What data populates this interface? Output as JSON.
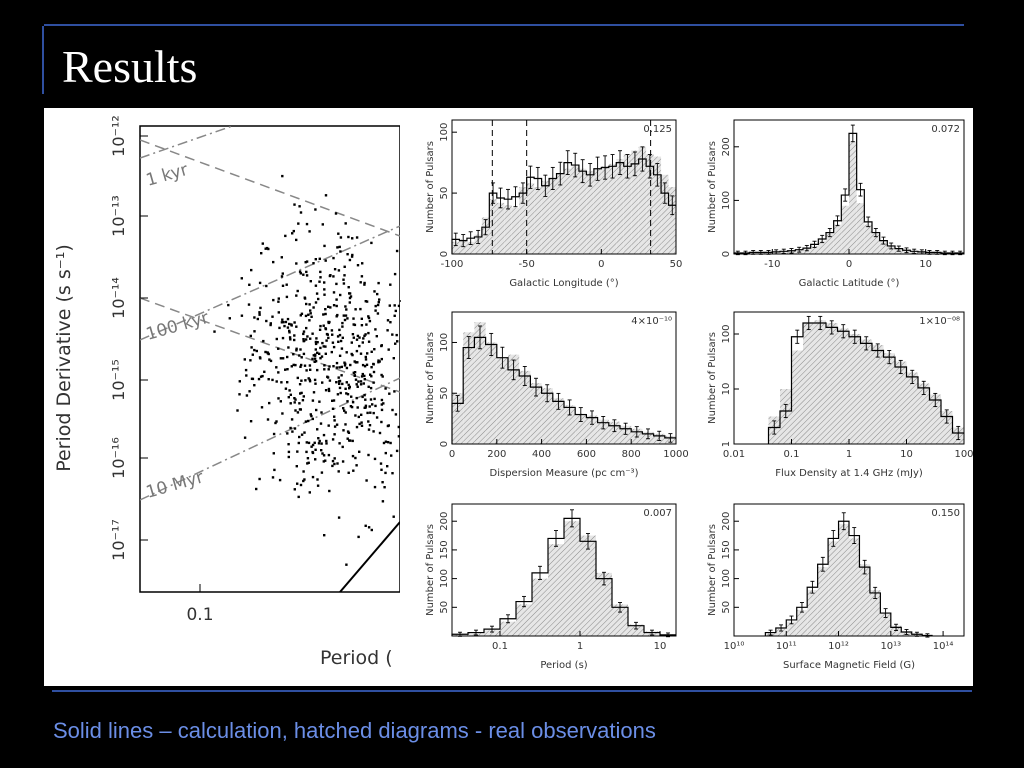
{
  "slide": {
    "title": "Results",
    "caption": "Solid lines – calculation, hatched diagrams - real observations"
  },
  "colors": {
    "background": "#000000",
    "accent_line": "#2f4fa0",
    "caption": "#6b8ee6",
    "title": "#ffffff"
  },
  "chart_data": [
    {
      "type": "scatter",
      "xlabel": "Period (",
      "ylabel": "Period Derivative (s s⁻¹)",
      "x_scale": "log",
      "y_scale": "log",
      "x_ticks": [
        "0.1"
      ],
      "y_ticks": [
        "10⁻¹²",
        "10⁻¹³",
        "10⁻¹⁴",
        "10⁻¹⁵",
        "10⁻¹⁶",
        "10⁻¹⁷"
      ],
      "annotations": [
        "1 kyr",
        "100 kyr",
        "10 Myr"
      ]
    },
    {
      "type": "bar",
      "xlabel": "Galactic Longitude (°)",
      "ylabel": "Number of Pulsars",
      "corner_label": "0.125",
      "x_ticks": [
        "-100",
        "-50",
        "0",
        "50"
      ],
      "y_ticks": [
        "0",
        "50",
        "100"
      ],
      "xlim": [
        -100,
        50
      ],
      "ylim": [
        0,
        110
      ],
      "bins_x": [
        -100,
        -95,
        -90,
        -85,
        -80,
        -75,
        -70,
        -65,
        -60,
        -55,
        -50,
        -45,
        -40,
        -35,
        -30,
        -25,
        -20,
        -15,
        -10,
        -5,
        0,
        5,
        10,
        15,
        20,
        25,
        30,
        35,
        40,
        45,
        50
      ],
      "observed": [
        10,
        12,
        10,
        16,
        30,
        45,
        42,
        40,
        38,
        55,
        58,
        55,
        60,
        62,
        66,
        70,
        72,
        70,
        68,
        70,
        72,
        74,
        78,
        82,
        85,
        88,
        82,
        80,
        65,
        55
      ],
      "model": [
        12,
        11,
        13,
        14,
        22,
        50,
        46,
        45,
        47,
        50,
        63,
        62,
        56,
        62,
        66,
        75,
        73,
        68,
        65,
        70,
        71,
        72,
        75,
        72,
        74,
        78,
        72,
        65,
        50,
        40
      ]
    },
    {
      "type": "bar",
      "xlabel": "Galactic Latitude (°)",
      "ylabel": "Number of Pulsars",
      "corner_label": "0.072",
      "x_ticks": [
        "-10",
        "0",
        "10"
      ],
      "y_ticks": [
        "0",
        "100",
        "200"
      ],
      "xlim": [
        -15,
        15
      ],
      "ylim": [
        0,
        250
      ],
      "bins_x": [
        -15,
        -14,
        -13,
        -12,
        -11,
        -10,
        -9,
        -8,
        -7,
        -6,
        -5,
        -4,
        -3,
        -2,
        -1,
        0,
        1,
        2,
        3,
        4,
        5,
        6,
        7,
        8,
        9,
        10,
        11,
        12,
        13,
        14,
        15
      ],
      "observed": [
        3,
        3,
        3,
        3,
        4,
        4,
        5,
        6,
        8,
        10,
        15,
        25,
        40,
        55,
        90,
        210,
        95,
        55,
        40,
        25,
        15,
        10,
        8,
        6,
        5,
        4,
        4,
        3,
        3,
        3
      ],
      "model": [
        2,
        2,
        3,
        3,
        3,
        4,
        5,
        6,
        8,
        11,
        18,
        28,
        40,
        62,
        110,
        225,
        120,
        60,
        40,
        25,
        15,
        10,
        7,
        5,
        4,
        3,
        3,
        2,
        2,
        2
      ]
    },
    {
      "type": "bar",
      "xlabel": "Dispersion Measure (pc cm⁻³)",
      "ylabel": "Number of Pulsars",
      "corner_label": "4×10⁻¹⁰",
      "x_ticks": [
        "0",
        "200",
        "400",
        "600",
        "800",
        "1000"
      ],
      "y_ticks": [
        "0",
        "50",
        "100"
      ],
      "xlim": [
        0,
        1000
      ],
      "ylim": [
        0,
        130
      ],
      "bins_x": [
        0,
        50,
        100,
        150,
        200,
        250,
        300,
        350,
        400,
        450,
        500,
        550,
        600,
        650,
        700,
        750,
        800,
        850,
        900,
        950,
        1000
      ],
      "observed": [
        50,
        110,
        120,
        100,
        85,
        88,
        72,
        60,
        55,
        45,
        38,
        30,
        28,
        24,
        22,
        18,
        15,
        12,
        10,
        8
      ],
      "model": [
        40,
        95,
        105,
        98,
        85,
        73,
        67,
        56,
        50,
        42,
        36,
        29,
        26,
        21,
        18,
        15,
        12,
        10,
        8,
        6
      ]
    },
    {
      "type": "bar",
      "xlabel": "Flux Density at 1.4 GHz (mJy)",
      "ylabel": "Number of Pulsars",
      "corner_label": "1×10⁻⁰⁸",
      "x_ticks": [
        "0.01",
        "0.1",
        "1",
        "10",
        "100"
      ],
      "y_ticks": [
        "1",
        "10",
        "100"
      ],
      "x_scale": "log",
      "y_scale": "log",
      "xlim_log10": [
        -2,
        2
      ],
      "ylim_log10": [
        0,
        2.4
      ],
      "bins_log10": [
        -1.4,
        -1.2,
        -1.0,
        -0.8,
        -0.6,
        -0.4,
        -0.2,
        0,
        0.2,
        0.4,
        0.6,
        0.8,
        1.0,
        1.2,
        1.4,
        1.6,
        1.8,
        2.0
      ],
      "observed_log10": [
        0.5,
        1.0,
        1.7,
        2.2,
        2.25,
        2.2,
        2.1,
        2.0,
        1.9,
        1.8,
        1.65,
        1.5,
        1.3,
        1.1,
        0.9,
        0.6,
        0.3
      ],
      "model_log10": [
        0.3,
        0.6,
        1.95,
        2.2,
        2.2,
        2.12,
        2.05,
        1.95,
        1.83,
        1.7,
        1.58,
        1.4,
        1.22,
        1.02,
        0.8,
        0.5,
        0.2
      ]
    },
    {
      "type": "bar",
      "xlabel": "Period (s)",
      "ylabel": "Number of Pulsars",
      "corner_label": "0.007",
      "x_ticks": [
        "0.1",
        "1",
        "10"
      ],
      "y_ticks": [
        "50",
        "100",
        "150",
        "200"
      ],
      "x_scale": "log",
      "xlim_log10": [
        -1.6,
        1.2
      ],
      "ylim": [
        0,
        230
      ],
      "bins_log10": [
        -1.6,
        -1.4,
        -1.2,
        -1.0,
        -0.8,
        -0.6,
        -0.4,
        -0.2,
        0.0,
        0.2,
        0.4,
        0.6,
        0.8,
        1.0,
        1.2
      ],
      "observed": [
        2,
        5,
        10,
        25,
        55,
        100,
        160,
        200,
        175,
        110,
        55,
        20,
        8,
        3
      ],
      "model": [
        3,
        6,
        12,
        30,
        60,
        110,
        170,
        205,
        165,
        100,
        50,
        18,
        6,
        2
      ]
    },
    {
      "type": "bar",
      "xlabel": "Surface Magnetic Field (G)",
      "ylabel": "Number of Pulsars",
      "corner_label": "0.150",
      "x_ticks": [
        "10¹⁰",
        "10¹¹",
        "10¹²",
        "10¹³",
        "10¹⁴"
      ],
      "y_ticks": [
        "50",
        "100",
        "150",
        "200"
      ],
      "x_scale": "log",
      "xlim_log10": [
        10,
        14.4
      ],
      "ylim": [
        0,
        230
      ],
      "bins_log10": [
        10.6,
        10.8,
        11.0,
        11.2,
        11.4,
        11.6,
        11.8,
        12.0,
        12.2,
        12.4,
        12.6,
        12.8,
        13.0,
        13.2,
        13.4,
        13.6,
        13.8
      ],
      "observed": [
        5,
        12,
        25,
        45,
        80,
        120,
        165,
        195,
        170,
        125,
        80,
        40,
        18,
        8,
        4,
        2
      ],
      "model": [
        6,
        14,
        28,
        50,
        85,
        125,
        170,
        200,
        175,
        120,
        75,
        40,
        15,
        7,
        3,
        1
      ]
    }
  ]
}
